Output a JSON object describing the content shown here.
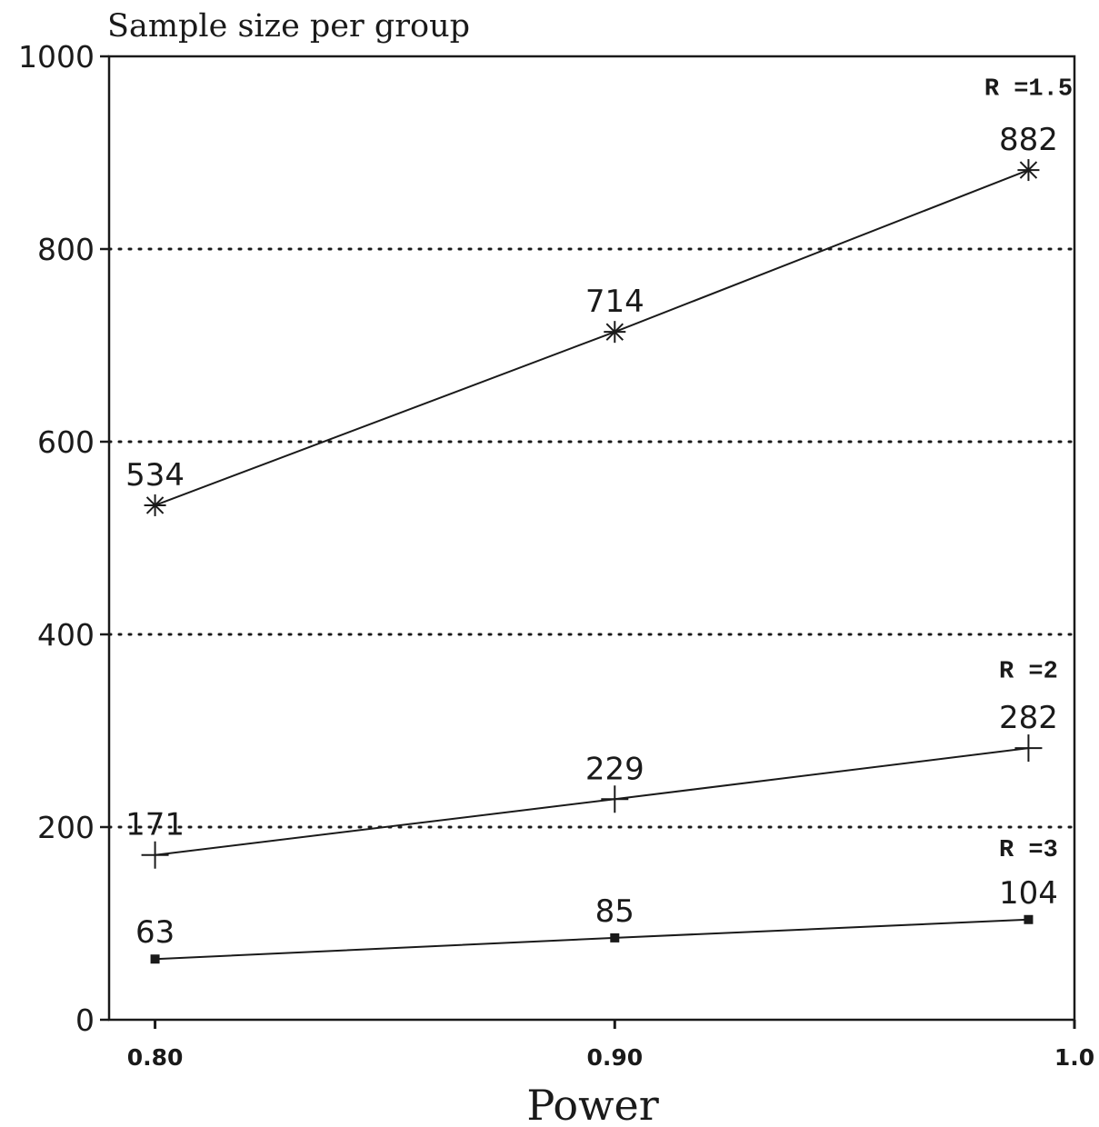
{
  "chart_data": {
    "type": "line",
    "title": "Sample size per group",
    "xlabel": "Power",
    "ylabel": "",
    "xlim": [
      0.79,
      1.0
    ],
    "ylim": [
      0,
      1000
    ],
    "x_ticks": [
      {
        "value": 0.8,
        "label": "0.80"
      },
      {
        "value": 0.9,
        "label": "0.90"
      },
      {
        "value": 1.0,
        "label": "1.0"
      }
    ],
    "y_ticks": [
      {
        "value": 0,
        "label": "0"
      },
      {
        "value": 200,
        "label": "200"
      },
      {
        "value": 400,
        "label": "400"
      },
      {
        "value": 600,
        "label": "600"
      },
      {
        "value": 800,
        "label": "800"
      },
      {
        "value": 1000,
        "label": "1000"
      }
    ],
    "grid": {
      "y": [
        200,
        400,
        600,
        800
      ],
      "style": "dotted"
    },
    "x": [
      0.8,
      0.9,
      0.99
    ],
    "series": [
      {
        "name": "R =1.5",
        "marker": "asterisk",
        "values": [
          534,
          714,
          882
        ],
        "labels": [
          "534",
          "714",
          "882"
        ],
        "label_x": 0.99,
        "label_y": 960
      },
      {
        "name": "R =2",
        "marker": "plus",
        "values": [
          171,
          229,
          282
        ],
        "labels": [
          "171",
          "229",
          "282"
        ],
        "label_x": 0.99,
        "label_y": 355
      },
      {
        "name": "R =3",
        "marker": "square",
        "values": [
          63,
          85,
          104
        ],
        "labels": [
          "63",
          "85",
          "104"
        ],
        "label_x": 0.99,
        "label_y": 170
      }
    ],
    "colors": {
      "ink": "#1a1a1a",
      "background": "#ffffff"
    }
  }
}
